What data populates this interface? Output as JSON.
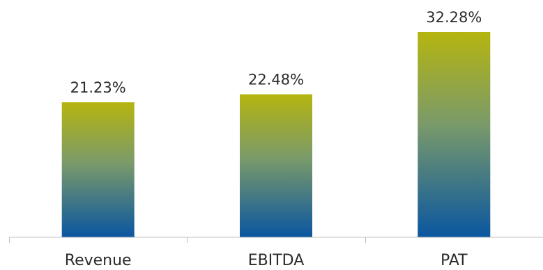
{
  "chart_data": {
    "type": "bar",
    "categories": [
      "Revenue",
      "EBITDA",
      "PAT"
    ],
    "values": [
      21.23,
      22.48,
      32.28
    ],
    "data_labels": [
      "21.23%",
      "22.48%",
      "32.28%"
    ],
    "title": "",
    "xlabel": "",
    "ylabel": "",
    "grid": false,
    "legend": "none",
    "colors": {
      "bar_gradient_top": "#b5b50f",
      "bar_gradient_mid": "#7a9a6a",
      "bar_gradient_bottom": "#0a56a0",
      "axis": "#bfbfbf",
      "text": "#2b2b2b"
    }
  }
}
